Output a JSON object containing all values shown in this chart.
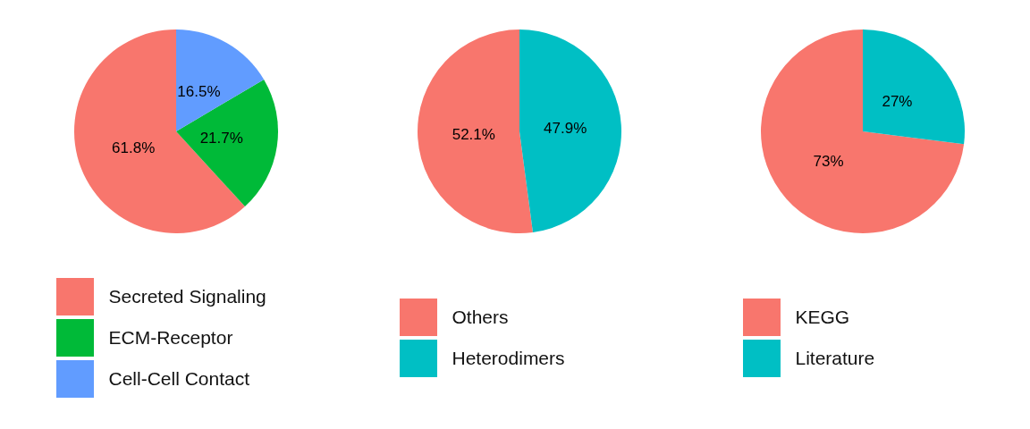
{
  "chart_data": [
    {
      "type": "pie",
      "categories": [
        "Secreted Signaling",
        "ECM-Receptor",
        "Cell-Cell Contact"
      ],
      "values": [
        61.8,
        21.7,
        16.5
      ],
      "value_labels": [
        "61.8%",
        "21.7%",
        "16.5%"
      ],
      "colors": [
        "#f8766d",
        "#00ba38",
        "#619cff"
      ],
      "legend": "bottom"
    },
    {
      "type": "pie",
      "categories": [
        "Others",
        "Heterodimers"
      ],
      "values": [
        52.1,
        47.9
      ],
      "value_labels": [
        "52.1%",
        "47.9%"
      ],
      "colors": [
        "#f8766d",
        "#00bfc4"
      ],
      "legend": "bottom"
    },
    {
      "type": "pie",
      "categories": [
        "KEGG",
        "Literature"
      ],
      "values": [
        73,
        27
      ],
      "value_labels": [
        "73%",
        "27%"
      ],
      "colors": [
        "#f8766d",
        "#00bfc4"
      ],
      "legend": "bottom"
    }
  ]
}
